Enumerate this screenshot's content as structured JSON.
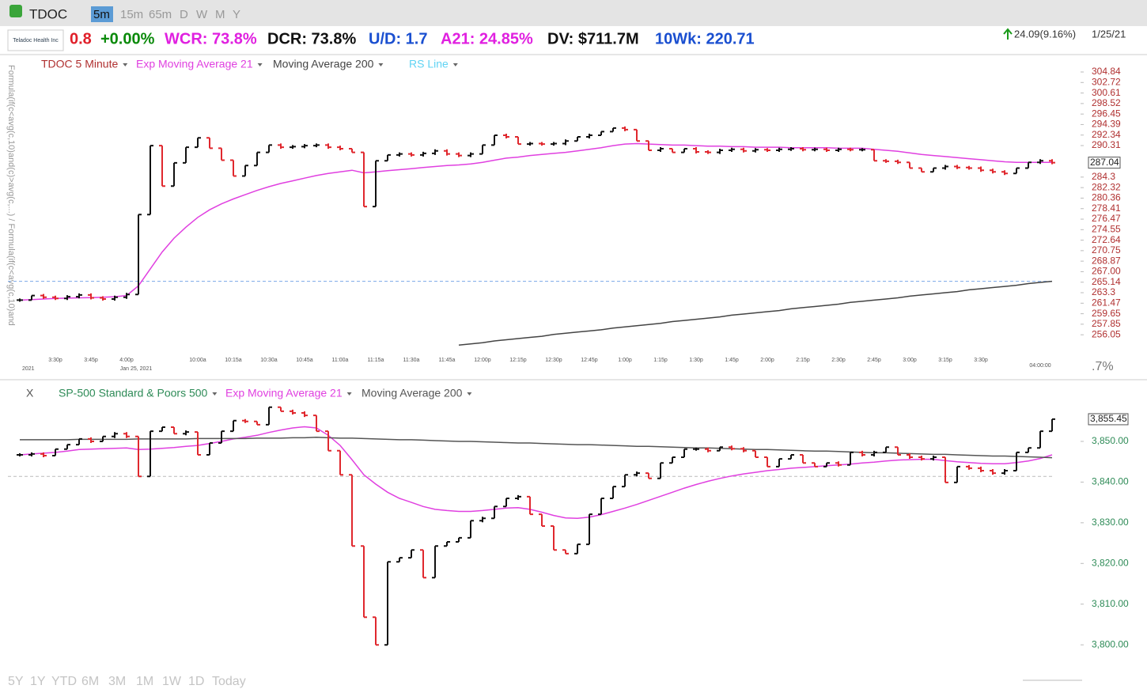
{
  "toolbar": {
    "symbol": "TDOC",
    "intervals": [
      "5m",
      "15m",
      "65m",
      "D",
      "W",
      "M",
      "Y"
    ]
  },
  "header": {
    "company": "Teladoc Health Inc",
    "metrics": [
      {
        "text": "0.8",
        "color": "#e0202a"
      },
      {
        "text": "+0.00%",
        "color": "#0a8a0a"
      },
      {
        "text": "WCR: 73.8%",
        "color": "#e020e0"
      },
      {
        "text": "DCR: 73.8%",
        "color": "#111111"
      },
      {
        "text": "U/D: 1.7",
        "color": "#1a4fd0"
      },
      {
        "text": "A21: 24.85%",
        "color": "#e020e0"
      },
      {
        "text": "DV: $711.7M",
        "color": "#111111"
      },
      {
        "text": "10Wk: 220.71",
        "color": "#1a4fd0"
      }
    ],
    "change": "24.09(9.16%)",
    "date": "1/25/21"
  },
  "side_text": "Formula(if(c<avg(c,10)and(c)>avg(c,...) / Formula(if(c<avg(c,10)and",
  "right_label": ".7%",
  "range_buttons": [
    "5Y",
    "1Y",
    "YTD",
    "6M",
    "3M",
    "1M",
    "1W",
    "1D",
    "Today"
  ],
  "chart_data": [
    {
      "type": "price_bar",
      "log_scale": true,
      "grid": false,
      "axis_color": "#b03030",
      "up_color": "#111111",
      "down_color": "#e0282e",
      "ylim": [
        253.8,
        305
      ],
      "yticks": [
        304.84,
        302.72,
        300.61,
        298.52,
        296.45,
        294.39,
        292.34,
        290.31,
        284.3,
        282.32,
        280.36,
        278.41,
        276.47,
        274.55,
        272.64,
        270.75,
        268.87,
        {
          "value": 267,
          "label": "267.00"
        },
        265.14,
        263.3,
        261.47,
        259.65,
        257.85,
        256.05
      ],
      "dashed_level": 265.3,
      "dashed_color": "#7aa7e8",
      "date_labels": [
        "2021",
        "Jan 25, 2021",
        "04:00:00"
      ],
      "categories": [
        null,
        null,
        null,
        "3:30p",
        null,
        null,
        "3:45p",
        null,
        null,
        "4:00p",
        null,
        null,
        null,
        null,
        null,
        "10:00a",
        null,
        null,
        "10:15a",
        null,
        null,
        "10:30a",
        null,
        null,
        "10:45a",
        null,
        null,
        "11:00a",
        null,
        null,
        "11:15a",
        null,
        null,
        "11:30a",
        null,
        null,
        "11:45a",
        null,
        null,
        "12:00p",
        null,
        null,
        "12:15p",
        null,
        null,
        "12:30p",
        null,
        null,
        "12:45p",
        null,
        null,
        "1:00p",
        null,
        null,
        "1:15p",
        null,
        null,
        "1:30p",
        null,
        null,
        "1:45p",
        null,
        null,
        "2:00p",
        null,
        null,
        "2:15p",
        null,
        null,
        "2:30p",
        null,
        null,
        "2:45p",
        null,
        null,
        "3:00p",
        null,
        null,
        "3:15p",
        null,
        null,
        "3:30p",
        null,
        null,
        null,
        null,
        null,
        null
      ],
      "series": [
        {
          "name": "TDOC 5 Minute",
          "color": "#b03030",
          "values": [
            262.0,
            262.8,
            262.5,
            262.3,
            262.6,
            262.9,
            262.4,
            262.2,
            262.5,
            263.0,
            277.3,
            290.3,
            282.6,
            287.0,
            290.0,
            291.8,
            289.8,
            287.5,
            284.5,
            286.5,
            289.0,
            290.4,
            290.0,
            290.1,
            290.3,
            290.4,
            290.0,
            289.7,
            289.0,
            278.8,
            287.4,
            288.5,
            288.7,
            288.5,
            288.8,
            289.3,
            288.7,
            288.4,
            288.7,
            290.4,
            292.3,
            292.0,
            290.6,
            290.7,
            290.6,
            290.7,
            291.2,
            292.0,
            292.3,
            293.0,
            293.7,
            293.4,
            291.2,
            289.4,
            289.7,
            289.0,
            289.7,
            289.1,
            289.0,
            289.4,
            289.6,
            289.3,
            289.5,
            289.4,
            289.6,
            289.7,
            289.5,
            289.6,
            289.4,
            289.6,
            289.5,
            289.5,
            287.4,
            287.3,
            287.1,
            286.0,
            285.3,
            286.0,
            286.3,
            286.1,
            286.0,
            285.6,
            285.3,
            285.0,
            286.0,
            287.1,
            287.4,
            287.04
          ]
        },
        {
          "name": "Exp Moving Average 21",
          "color": "#e040e0",
          "values": [
            262.0,
            262.1,
            262.2,
            262.3,
            262.35,
            262.4,
            262.45,
            262.5,
            262.6,
            262.8,
            264.5,
            267.5,
            270.5,
            273,
            275,
            276.8,
            278.2,
            279.3,
            280.2,
            281.0,
            281.8,
            282.5,
            283.1,
            283.6,
            284.1,
            284.6,
            285.0,
            285.3,
            285.6,
            285.1,
            285.3,
            285.5,
            285.7,
            285.9,
            286.1,
            286.3,
            286.5,
            286.6,
            286.8,
            287.1,
            287.5,
            287.9,
            288.1,
            288.4,
            288.6,
            288.8,
            289.0,
            289.3,
            289.6,
            289.9,
            290.3,
            290.6,
            290.7,
            290.6,
            290.5,
            290.4,
            290.4,
            290.3,
            290.2,
            290.2,
            290.1,
            290.1,
            290.0,
            290.0,
            290.0,
            289.9,
            289.9,
            289.9,
            289.9,
            289.8,
            289.8,
            289.8,
            289.6,
            289.4,
            289.2,
            288.9,
            288.6,
            288.4,
            288.2,
            288.0,
            287.8,
            287.6,
            287.4,
            287.2,
            287.1,
            287.1,
            287.1,
            287.1
          ]
        },
        {
          "name": "Moving Average 200",
          "color": "#444444",
          "values": [
            null,
            null,
            null,
            null,
            null,
            null,
            null,
            null,
            null,
            null,
            null,
            null,
            null,
            null,
            null,
            null,
            null,
            null,
            null,
            null,
            null,
            null,
            null,
            null,
            null,
            null,
            null,
            null,
            null,
            null,
            null,
            null,
            null,
            null,
            null,
            null,
            null,
            254.3,
            254.5,
            254.7,
            255.0,
            255.2,
            255.4,
            255.6,
            255.8,
            256.1,
            256.3,
            256.5,
            256.7,
            256.9,
            257.2,
            257.4,
            257.6,
            257.8,
            258.0,
            258.3,
            258.5,
            258.7,
            258.9,
            259.1,
            259.4,
            259.6,
            259.8,
            260.0,
            260.2,
            260.5,
            260.7,
            260.9,
            261.1,
            261.3,
            261.6,
            261.8,
            262.0,
            262.2,
            262.4,
            262.7,
            262.9,
            263.1,
            263.3,
            263.5,
            263.8,
            264.0,
            264.2,
            264.4,
            264.6,
            264.9,
            265.1,
            265.3
          ]
        }
      ],
      "extra_legend": {
        "name": "RS Line",
        "color": "#5fd3f3"
      }
    },
    {
      "type": "price_bar",
      "log_scale": false,
      "grid": false,
      "axis_color": "#2e8b57",
      "up_color": "#111111",
      "down_color": "#e0282e",
      "close_button": "X",
      "ylim": [
        3794.2,
        3860.3
      ],
      "yticks": [
        {
          "value": 3800,
          "label": "3,800.00"
        },
        {
          "value": 3810,
          "label": "3,810.00"
        },
        {
          "value": 3820,
          "label": "3,820.00"
        },
        {
          "value": 3830,
          "label": "3,830.00"
        },
        {
          "value": 3840,
          "label": "3,840.00"
        },
        {
          "value": 3850,
          "label": "3,850.00"
        }
      ],
      "dashed_level": 3841.4,
      "dashed_color": "#bbbbbb",
      "last_label": "3,855.45",
      "series": [
        {
          "name": "SP-500 Standard & Poors 500",
          "color": "#2e8b57",
          "values": [
            3846.7,
            3846.9,
            3846.5,
            3848.1,
            3849.2,
            3850.6,
            3850.0,
            3851.2,
            3851.9,
            3851.2,
            3841.4,
            3852.5,
            3853.5,
            3851.9,
            3852.3,
            3846.7,
            3849.6,
            3852.5,
            3855.1,
            3854.9,
            3854.1,
            3858.4,
            3857.4,
            3857.0,
            3856.4,
            3852.5,
            3847.7,
            3841.8,
            3824.3,
            3806.8,
            3800.0,
            3820.4,
            3821.4,
            3823.3,
            3816.5,
            3824.3,
            3825.3,
            3826.3,
            3830.5,
            3831.1,
            3834.0,
            3836.0,
            3836.4,
            3832.1,
            3829.2,
            3823.3,
            3822.4,
            3824.7,
            3832.1,
            3836.0,
            3838.9,
            3841.8,
            3842.2,
            3840.9,
            3844.7,
            3846.1,
            3848.1,
            3848.1,
            3847.7,
            3848.6,
            3848.2,
            3847.7,
            3846.1,
            3843.8,
            3845.7,
            3846.7,
            3844.7,
            3843.8,
            3844.7,
            3844.2,
            3847.3,
            3846.7,
            3847.3,
            3848.6,
            3846.7,
            3846.1,
            3845.7,
            3846.1,
            3839.9,
            3843.8,
            3843.4,
            3842.8,
            3842.2,
            3842.8,
            3847.3,
            3848.4,
            3852.5,
            3855.45
          ]
        },
        {
          "name": "Exp Moving Average 21",
          "color": "#e040e0",
          "values": [
            3846.7,
            3846.9,
            3847.1,
            3847.3,
            3847.6,
            3848.0,
            3848.1,
            3848.2,
            3848.3,
            3848.4,
            3848.0,
            3848.1,
            3848.3,
            3848.5,
            3848.8,
            3849.0,
            3849.5,
            3850.0,
            3850.6,
            3851.0,
            3851.5,
            3852.2,
            3852.8,
            3853.3,
            3853.6,
            3853.3,
            3851.5,
            3849.0,
            3845.5,
            3841.8,
            3839.5,
            3837.5,
            3836.0,
            3835.0,
            3834.0,
            3833.3,
            3833.0,
            3832.8,
            3832.8,
            3833.0,
            3833.3,
            3833.6,
            3833.7,
            3833.3,
            3832.6,
            3831.8,
            3831.2,
            3831.1,
            3831.4,
            3832.0,
            3832.8,
            3833.6,
            3834.5,
            3835.5,
            3836.5,
            3837.5,
            3838.5,
            3839.4,
            3840.2,
            3840.9,
            3841.5,
            3842.0,
            3842.4,
            3842.8,
            3843.1,
            3843.4,
            3843.6,
            3843.8,
            3844.0,
            3844.2,
            3844.4,
            3844.7,
            3844.9,
            3845.2,
            3845.4,
            3845.5,
            3845.6,
            3845.6,
            3845.3,
            3845.0,
            3844.8,
            3844.6,
            3844.5,
            3844.5,
            3844.8,
            3845.2,
            3845.8,
            3846.7
          ]
        },
        {
          "name": "Moving Average 200",
          "color": "#555555",
          "values": [
            3850.4,
            3850.4,
            3850.4,
            3850.4,
            3850.4,
            3850.5,
            3850.5,
            3850.5,
            3850.5,
            3850.5,
            3850.6,
            3850.6,
            3850.6,
            3850.6,
            3850.6,
            3850.7,
            3850.7,
            3850.7,
            3850.7,
            3850.7,
            3850.8,
            3850.8,
            3850.8,
            3850.9,
            3850.9,
            3851.0,
            3850.9,
            3850.8,
            3850.8,
            3850.7,
            3850.6,
            3850.5,
            3850.4,
            3850.4,
            3850.3,
            3850.2,
            3850.1,
            3850.0,
            3850.0,
            3849.9,
            3849.8,
            3849.7,
            3849.6,
            3849.6,
            3849.5,
            3849.4,
            3849.3,
            3849.2,
            3849.2,
            3849.1,
            3849.0,
            3848.9,
            3848.8,
            3848.8,
            3848.7,
            3848.6,
            3848.5,
            3848.4,
            3848.4,
            3848.3,
            3848.2,
            3848.1,
            3848.0,
            3848.0,
            3847.9,
            3847.8,
            3847.7,
            3847.6,
            3847.6,
            3847.5,
            3847.4,
            3847.3,
            3847.2,
            3847.2,
            3847.1,
            3847.0,
            3846.9,
            3846.8,
            3846.8,
            3846.7,
            3846.6,
            3846.5,
            3846.4,
            3846.4,
            3846.3,
            3846.2,
            3846.1,
            3846.0
          ]
        }
      ]
    }
  ]
}
